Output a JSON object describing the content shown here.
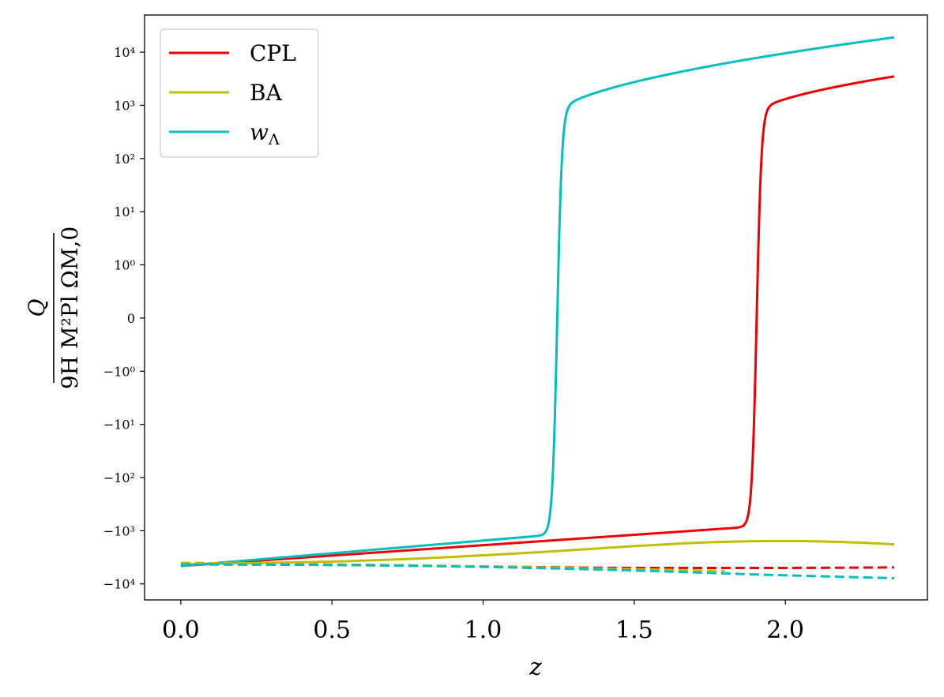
{
  "chart_data": {
    "type": "line",
    "title": "",
    "xlabel": "z",
    "ylabel": "Q / (9H M_Pl^2 Ω_M,0)",
    "ylabel_numerator": "Q",
    "ylabel_denominator": "9H M²Pl ΩM,0",
    "yscale": "symlog",
    "xlim": [
      -0.12,
      2.47
    ],
    "ylim": [
      -20000,
      50000
    ],
    "x_ticks": [
      "0.0",
      "0.5",
      "1.0",
      "1.5",
      "2.0"
    ],
    "x_tick_values": [
      0,
      0.5,
      1.0,
      1.5,
      2.0
    ],
    "y_ticks": [
      "10⁴",
      "10³",
      "10²",
      "10¹",
      "10⁰",
      "0",
      "−10⁰",
      "−10¹",
      "−10²",
      "−10³",
      "−10⁴"
    ],
    "y_tick_values": [
      10000,
      1000,
      100,
      10,
      1,
      0,
      -1,
      -10,
      -100,
      -1000,
      -10000
    ],
    "legend_position": "top-left",
    "legend": [
      {
        "label": "CPL",
        "color": "#ee0000"
      },
      {
        "label": "BA",
        "color": "#bfbf00"
      },
      {
        "label": "w_Λ",
        "label_base": "w",
        "label_sub": "Λ",
        "color": "#00bfbf"
      }
    ],
    "series": [
      {
        "name": "CPL",
        "style": "solid",
        "color": "#ee0000",
        "model": {
          "kind": "transition",
          "z_t": 1.905,
          "width": 0.008,
          "neg_start": -4600,
          "neg_growth": 0.9,
          "pos_start": 700,
          "pos_end": 3500
        }
      },
      {
        "name": "BA",
        "style": "solid",
        "color": "#bfbf00",
        "x": [
          0,
          0.25,
          0.5,
          0.75,
          1.0,
          1.25,
          1.5,
          1.75,
          2.0,
          2.25,
          2.36
        ],
        "y": [
          -4300,
          -4050,
          -3800,
          -3400,
          -2900,
          -2400,
          -1950,
          -1650,
          -1560,
          -1680,
          -1800
        ]
      },
      {
        "name": "w_Λ",
        "style": "solid",
        "color": "#00bfbf",
        "model": {
          "kind": "transition",
          "z_t": 1.245,
          "width": 0.008,
          "neg_start": -4600,
          "neg_growth": 1.1,
          "pos_start": 700,
          "pos_end": 19000
        }
      },
      {
        "name": "CPL (dashed)",
        "style": "dashed",
        "color": "#ee0000",
        "x": [
          0,
          0.5,
          1.0,
          1.5,
          2.0,
          2.36
        ],
        "y": [
          -4300,
          -4400,
          -4700,
          -5000,
          -5000,
          -4900
        ]
      },
      {
        "name": "BA (dashed)",
        "style": "dashed",
        "color": "#bfbf00",
        "x": [
          0,
          0.5,
          1.0,
          1.5,
          1.8
        ],
        "y": [
          -4000,
          -4300,
          -4700,
          -5300,
          -5700
        ]
      },
      {
        "name": "w_Λ (dashed)",
        "style": "dashed",
        "color": "#00bfbf",
        "x": [
          0,
          0.5,
          1.0,
          1.5,
          2.0,
          2.36
        ],
        "y": [
          -4300,
          -4400,
          -4800,
          -5600,
          -6900,
          -7800
        ]
      }
    ]
  }
}
